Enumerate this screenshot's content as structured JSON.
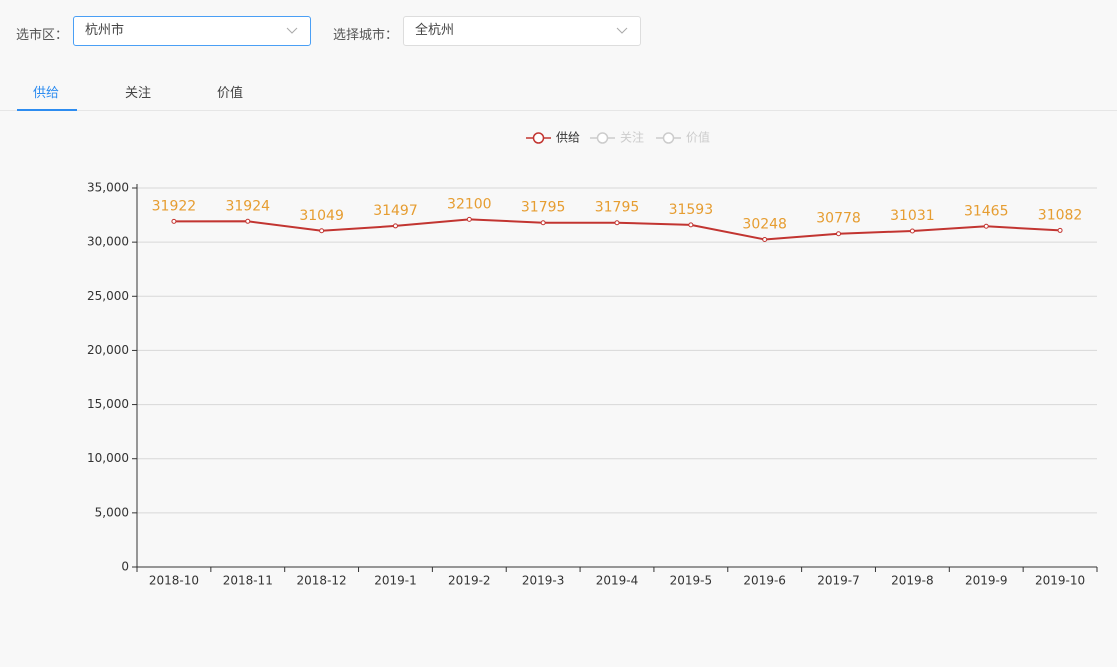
{
  "filters": [
    {
      "label": "选市区：",
      "value": "杭州市"
    },
    {
      "label": "选择城市：",
      "value": "全杭州"
    }
  ],
  "tabs": [
    "供给",
    "关注",
    "价值"
  ],
  "chart_data": {
    "type": "line",
    "legend": [
      {
        "name": "供给",
        "color": "#c23531"
      },
      {
        "name": "关注",
        "color": "#cccccc"
      },
      {
        "name": "价值",
        "color": "#cccccc"
      }
    ],
    "categories": [
      "2018-10",
      "2018-11",
      "2018-12",
      "2019-1",
      "2019-2",
      "2019-3",
      "2019-4",
      "2019-5",
      "2019-6",
      "2019-7",
      "2019-8",
      "2019-9",
      "2019-10"
    ],
    "series": [
      {
        "name": "供给",
        "color": "#c23531",
        "values": [
          31922,
          31924,
          31049,
          31497,
          32100,
          31795,
          31795,
          31593,
          30248,
          30778,
          31031,
          31465,
          31082
        ]
      }
    ],
    "label_color": "#e69d31",
    "ylim": [
      0,
      35000
    ],
    "yticks": [
      0,
      {
        "value": 5000,
        "label": "5,000"
      },
      {
        "value": 10000,
        "label": "10,000"
      },
      {
        "value": 15000,
        "label": "15,000"
      },
      {
        "value": 20000,
        "label": "20,000"
      },
      {
        "value": 25000,
        "label": "25,000"
      },
      {
        "value": 30000,
        "label": "30,000"
      },
      {
        "value": 35000,
        "label": "35,000"
      }
    ],
    "grid": true
  }
}
